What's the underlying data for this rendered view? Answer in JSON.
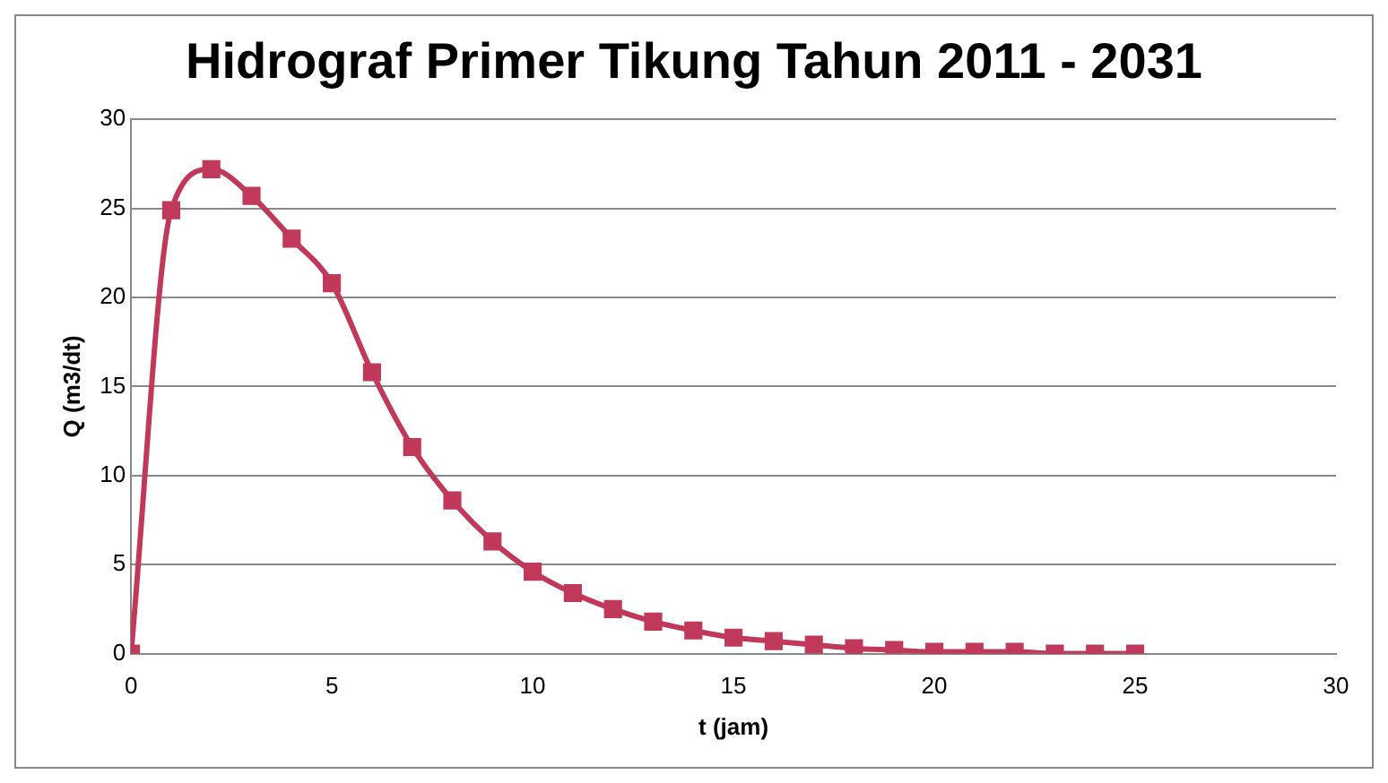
{
  "chart_data": {
    "type": "line",
    "title": "Hidrograf Primer Tikung Tahun 2011 - 2031",
    "xlabel": "t (jam)",
    "ylabel": "Q (m3/dt)",
    "x": [
      0,
      1,
      2,
      3,
      4,
      5,
      6,
      7,
      8,
      9,
      10,
      11,
      12,
      13,
      14,
      15,
      16,
      17,
      18,
      19,
      20,
      21,
      22,
      23,
      24,
      25
    ],
    "series": [
      {
        "color": "#c0395a",
        "values": [
          0,
          24.9,
          27.2,
          25.7,
          23.3,
          20.8,
          15.8,
          11.6,
          8.6,
          6.3,
          4.6,
          3.4,
          2.5,
          1.8,
          1.3,
          0.9,
          0.7,
          0.5,
          0.3,
          0.2,
          0.1,
          0.1,
          0.1,
          0,
          0,
          0
        ]
      }
    ],
    "xlim": [
      0,
      30
    ],
    "xticks": [
      0,
      5,
      10,
      15,
      20,
      25,
      30
    ],
    "ylim": [
      0,
      30
    ],
    "yticks": [
      0,
      5,
      10,
      15,
      20,
      25,
      30
    ],
    "grid": "y",
    "marker": "square",
    "line_style": "solid",
    "legend": false
  }
}
